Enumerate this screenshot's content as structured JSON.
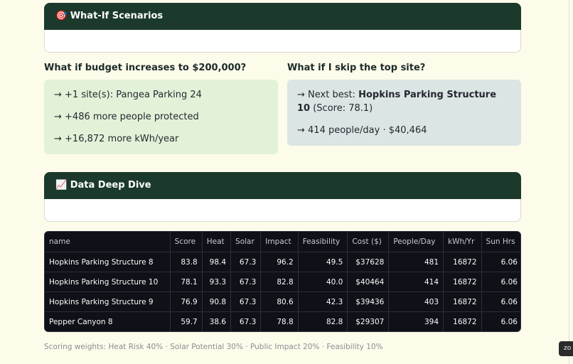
{
  "whatif": {
    "title": "🎯 What-If Scenarios",
    "budget": {
      "heading": "What if budget increases to $200,000?",
      "lines": [
        "→ +1 site(s): Pangea Parking 24",
        "→ +486 more people protected",
        "→ +16,872 more kWh/year"
      ]
    },
    "skip": {
      "heading": "What if I skip the top site?",
      "next_prefix": "→ Next best: ",
      "next_name": "Hopkins Parking Structure 10",
      "next_suffix": " (Score: 78.1)",
      "line2": "→ 414 people/day · $40,464"
    }
  },
  "deepdive": {
    "title": "📈 Data Deep Dive",
    "table": {
      "columns": [
        "name",
        "Score",
        "Heat",
        "Solar",
        "Impact",
        "Feasibility",
        "Cost ($)",
        "People/Day",
        "kWh/Yr",
        "Sun Hrs"
      ],
      "rows": [
        [
          "Hopkins Parking Structure 8",
          "83.8",
          "98.4",
          "67.3",
          "96.2",
          "49.5",
          "$37628",
          "481",
          "16872",
          "6.06"
        ],
        [
          "Hopkins Parking Structure 10",
          "78.1",
          "93.3",
          "67.3",
          "82.8",
          "40.0",
          "$40464",
          "414",
          "16872",
          "6.06"
        ],
        [
          "Hopkins Parking Structure 9",
          "76.9",
          "90.8",
          "67.3",
          "80.6",
          "42.3",
          "$39436",
          "403",
          "16872",
          "6.06"
        ],
        [
          "Pepper Canyon 8",
          "59.7",
          "38.6",
          "67.3",
          "78.8",
          "82.8",
          "$29307",
          "394",
          "16872",
          "6.06"
        ]
      ]
    }
  },
  "footer": "Scoring weights: Heat Risk 40% · Solar Potential 30% · Public Impact 20% · Feasibility 10%",
  "corner_button": "zo"
}
